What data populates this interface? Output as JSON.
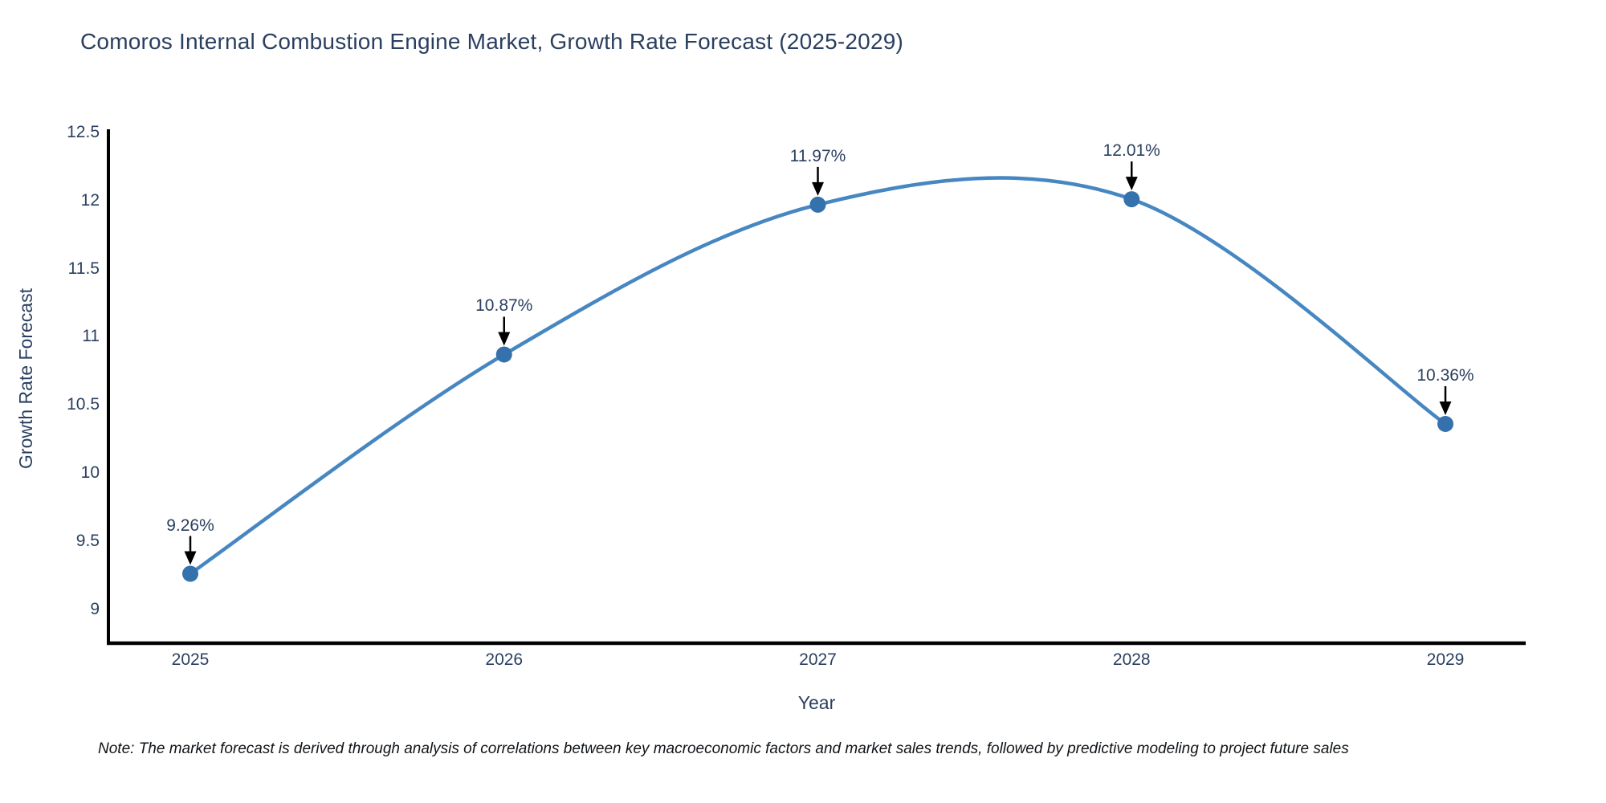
{
  "page": {
    "title": "Comoros Internal Combustion Engine Market, Growth Rate Forecast (2025-2029)",
    "note": "Note: The market forecast is derived through analysis of correlations between key macroeconomic factors and market sales trends, followed by predictive modeling to project future sales"
  },
  "chart_data": {
    "type": "line",
    "title": "Comoros Internal Combustion Engine Market, Growth Rate Forecast (2025-2029)",
    "xlabel": "Year",
    "ylabel": "Growth Rate Forecast",
    "categories": [
      "2025",
      "2026",
      "2027",
      "2028",
      "2029"
    ],
    "values": [
      9.26,
      10.87,
      11.97,
      12.01,
      10.36
    ],
    "point_labels": [
      "9.26%",
      "10.87%",
      "11.97%",
      "12.01%",
      "10.36%"
    ],
    "series_name": "Growth Rate Forecast",
    "ylim": [
      8.75,
      12.5
    ],
    "yticks": [
      9,
      9.5,
      10,
      10.5,
      11,
      11.5,
      12,
      12.5
    ],
    "grid": false,
    "legend_position": "none",
    "curve_style": "spline",
    "annotation_arrow": "down-arrow-black",
    "colors": {
      "line": "#4787c1",
      "marker": "#3471ad",
      "axis_line": "#000000",
      "tick_text": "#2a3f5f",
      "title_text": "#2a3f5f",
      "note_text": "#101418",
      "background": "#ffffff"
    }
  }
}
